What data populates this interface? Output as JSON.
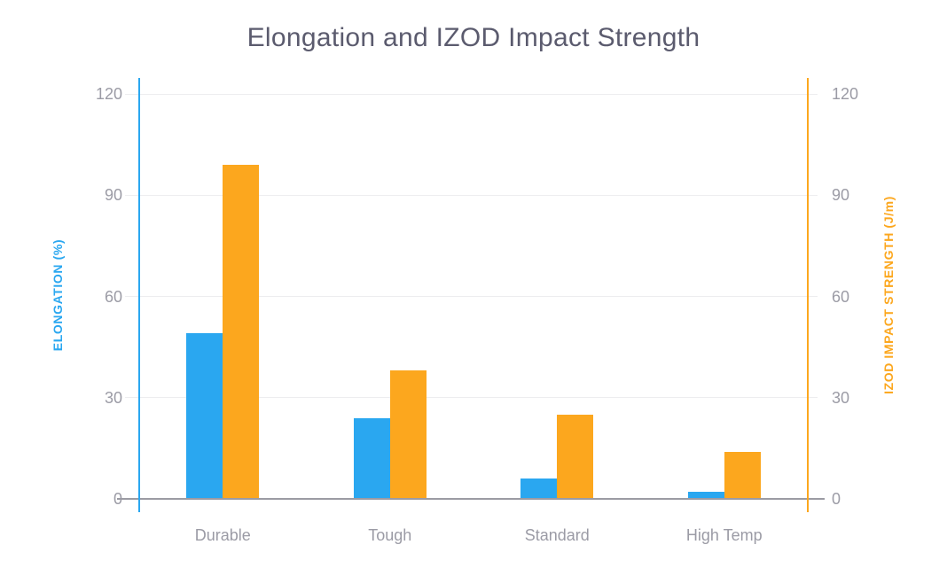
{
  "chart_data": {
    "type": "bar",
    "title": "Elongation and IZOD Impact Strength",
    "categories": [
      "Durable",
      "Tough",
      "Standard",
      "High Temp"
    ],
    "series": [
      {
        "name": "Elongation (%)",
        "axis": "left",
        "color": "#2AA7F0",
        "values": [
          49,
          24,
          6,
          2
        ]
      },
      {
        "name": "IZOD Impact Strength (J/m)",
        "axis": "right",
        "color": "#FCA71E",
        "values": [
          99,
          38,
          25,
          14
        ]
      }
    ],
    "left_axis": {
      "label": "ELONGATION (%)",
      "color": "#2AA7F0",
      "min": 0,
      "max": 120,
      "ticks": [
        0,
        30,
        60,
        90,
        120
      ]
    },
    "right_axis": {
      "label": "IZOD IMPACT STRENGTH (J/m)",
      "color": "#FCA71E",
      "min": 0,
      "max": 120,
      "ticks": [
        0,
        30,
        60,
        90,
        120
      ]
    },
    "grid": true,
    "legend": "none",
    "styles": {
      "title_color": "#5B5B6E",
      "tick_label_color": "#9B9BA5",
      "category_label_color": "#9B9BA5",
      "gridline_color": "#EDEDEF",
      "baseline_color": "#9B9BA3",
      "background": "#FFFFFF"
    }
  }
}
